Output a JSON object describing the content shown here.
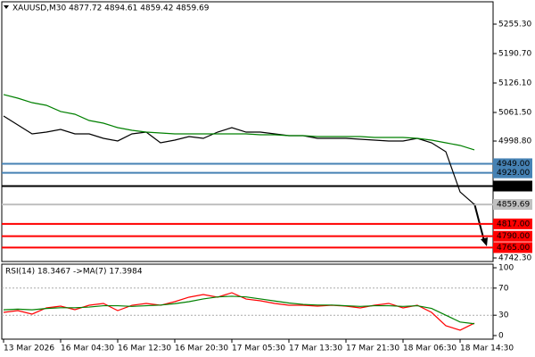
{
  "chart_data": [
    {
      "type": "line",
      "title": "XAUUSD,M30 4877.72 4894.61 4859.42 4859.69",
      "categories": [
        "13 Mar 2026",
        null,
        null,
        null,
        "16 Mar 04:30",
        null,
        null,
        null,
        "16 Mar 12:30",
        null,
        null,
        null,
        "16 Mar 20:30",
        null,
        null,
        null,
        "17 Mar 05:30",
        null,
        null,
        null,
        "17 Mar 13:30",
        null,
        null,
        null,
        "17 Mar 21:30",
        null,
        null,
        null,
        "18 Mar 06:30",
        null,
        null,
        null,
        "18 Mar 14:30",
        null
      ],
      "series": [
        {
          "color": "#000000",
          "values": [
            5053.7,
            5034.1,
            5014.5,
            5018.4,
            5024.3,
            5014.5,
            5014.5,
            5004.7,
            4998.9,
            5014.5,
            5018.4,
            4994.9,
            5000.8,
            5008.6,
            5004.7,
            5018.4,
            5028.2,
            5018.4,
            5018.4,
            5014.5,
            5010.6,
            5010.6,
            5004.7,
            5004.7,
            5004.7,
            5002.8,
            5000.8,
            4998.9,
            4998.9,
            5004.7,
            4994.9,
            4975.4,
            4887.2,
            4859.69
          ]
        },
        {
          "color": "#008000",
          "values": [
            5100.7,
            5092.8,
            5083.0,
            5077.2,
            5063.5,
            5057.6,
            5043.9,
            5038.0,
            5028.2,
            5022.3,
            5018.4,
            5016.5,
            5014.5,
            5014.5,
            5014.5,
            5014.5,
            5014.5,
            5014.5,
            5012.6,
            5012.6,
            5010.6,
            5010.6,
            5008.6,
            5008.6,
            5008.6,
            5008.6,
            5006.7,
            5006.7,
            5006.7,
            5004.7,
            5000.8,
            4994.9,
            4989.1,
            4979.3
          ]
        }
      ],
      "ylim": [
        4734.5,
        5304.3
      ],
      "yticks": [
        {
          "value": 5255.3,
          "label": "5255.30"
        },
        {
          "value": 5190.7,
          "label": "5190.70"
        },
        {
          "value": 5126.1,
          "label": "5126.10"
        },
        {
          "value": 5061.5,
          "label": "5061.50"
        },
        {
          "value": 4998.8,
          "label": "4998.80"
        },
        {
          "value": 4742.3,
          "label": "4742.30"
        }
      ],
      "levels": [
        {
          "value": 4949,
          "label": "4949.00",
          "color": "#4682b4"
        },
        {
          "value": 4929,
          "label": "4929.00",
          "color": "#4682b4"
        },
        {
          "value": 4900,
          "label": "4900.00",
          "color": "#000000"
        },
        {
          "value": 4859.69,
          "label": "4859.69",
          "color": "#c0c0c0"
        },
        {
          "value": 4817,
          "label": "4817.00",
          "color": "#ff0000"
        },
        {
          "value": 4790,
          "label": "4790.00",
          "color": "#ff0000"
        },
        {
          "value": 4765,
          "label": "4765.00",
          "color": "#ff0000"
        }
      ]
    },
    {
      "type": "line",
      "title": "RSI(14) 18.3467 ->MA(7) 17.3984",
      "series": [
        {
          "color": "#ff0000",
          "values": [
            34.2,
            36.8,
            31.6,
            40.8,
            43.4,
            38.2,
            44.7,
            47.4,
            36.8,
            44.7,
            47.4,
            44.7,
            50.0,
            56.6,
            60.5,
            56.6,
            63.2,
            53.9,
            51.3,
            47.4,
            44.7,
            44.7,
            43.4,
            44.7,
            43.4,
            40.8,
            44.7,
            47.4,
            40.8,
            44.7,
            34.2,
            14.5,
            7.9,
            18.3
          ]
        },
        {
          "color": "#008000",
          "values": [
            38,
            39,
            38,
            40,
            41,
            41,
            42,
            44,
            44,
            43,
            44,
            45,
            47,
            50,
            54,
            57,
            58,
            57,
            54,
            51,
            48,
            46,
            45,
            45,
            44,
            43,
            44,
            44,
            43,
            44,
            40,
            30,
            20,
            17.4
          ]
        }
      ],
      "ylim": [
        -5.3,
        105.3
      ],
      "yticks": [
        100,
        70,
        30,
        0
      ],
      "dashed": [
        70,
        30
      ]
    }
  ]
}
